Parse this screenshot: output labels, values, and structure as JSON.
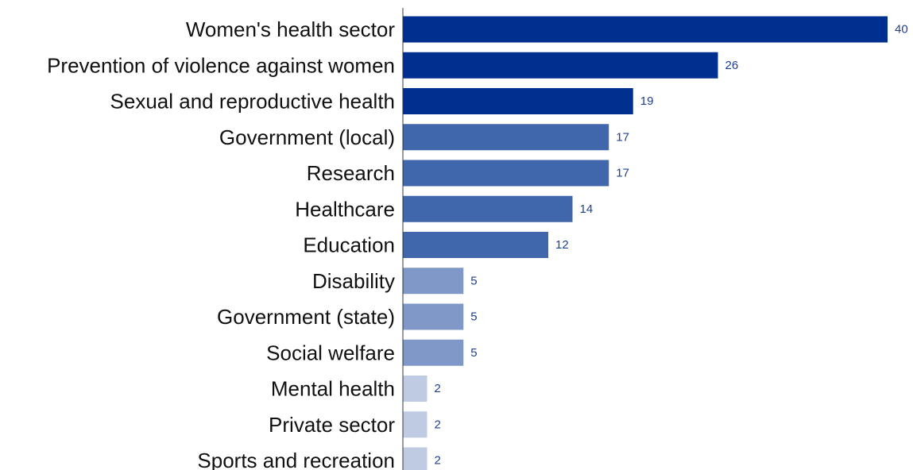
{
  "chart_data": {
    "type": "bar",
    "orientation": "horizontal",
    "title": "",
    "xlabel": "",
    "ylabel": "",
    "xlim": [
      0,
      40
    ],
    "grid": false,
    "legend": "none",
    "categories": [
      "Women's health sector",
      "Prevention of violence against women",
      "Sexual and reproductive health",
      "Government (local)",
      "Research",
      "Healthcare",
      "Education",
      "Disability",
      "Government (state)",
      "Social welfare",
      "Mental health",
      "Private sector",
      "Sports and recreation"
    ],
    "values": [
      40,
      26,
      19,
      17,
      17,
      14,
      12,
      5,
      5,
      5,
      2,
      2,
      2
    ],
    "bar_colors": [
      "#00308f",
      "#00308f",
      "#00308f",
      "#4066ab",
      "#4066ab",
      "#4066ab",
      "#4066ab",
      "#7f98c7",
      "#7f98c7",
      "#7f98c7",
      "#bfcbe3",
      "#bfcbe3",
      "#bfcbe3"
    ],
    "value_label_color": "#1f3f8f",
    "axis_color": "#33383f"
  }
}
